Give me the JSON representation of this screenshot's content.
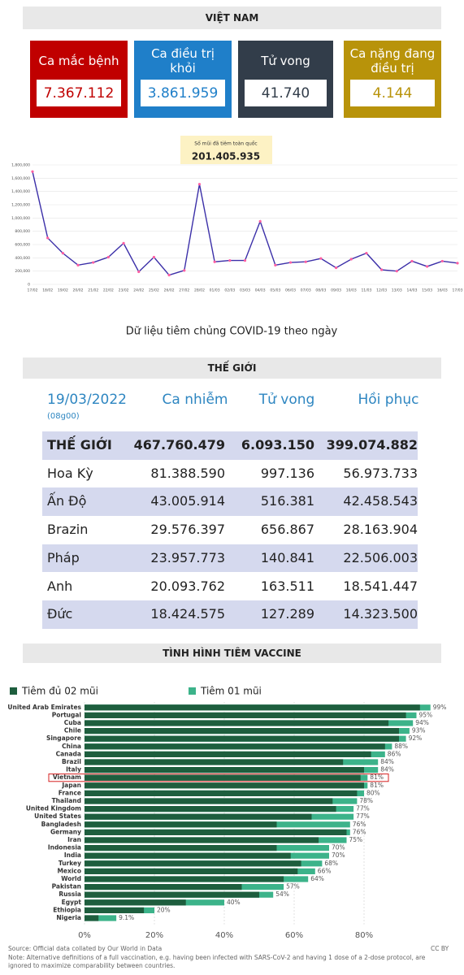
{
  "vietnam": {
    "title": "VIỆT NAM",
    "cards": [
      {
        "label": "Ca mắc bệnh",
        "value": "7.367.112",
        "color": "#c00000"
      },
      {
        "label": "Ca điều trị khỏi",
        "value": "3.861.959",
        "color": "#1f7fc9"
      },
      {
        "label": "Tử vong",
        "value": "41.740",
        "color": "#323d4a"
      },
      {
        "label": "Ca nặng đang điều trị",
        "value": "4.144",
        "color": "#b8930a"
      }
    ]
  },
  "chart_data": [
    {
      "type": "line",
      "annotation": {
        "label": "Số mũi đã tiêm toàn quốc",
        "value": "201.405.935"
      },
      "caption": "Dữ liệu tiêm chủng COVID-19 theo ngày",
      "x": [
        "17/02",
        "18/02",
        "19/02",
        "20/02",
        "21/02",
        "22/02",
        "23/02",
        "24/02",
        "25/02",
        "26/02",
        "27/02",
        "28/02",
        "01/03",
        "02/03",
        "03/03",
        "04/03",
        "05/03",
        "06/03",
        "07/03",
        "08/03",
        "09/03",
        "10/03",
        "11/03",
        "12/03",
        "13/03",
        "14/03",
        "15/03",
        "16/03",
        "17/03"
      ],
      "values": [
        1700000,
        700000,
        470000,
        290000,
        330000,
        410000,
        620000,
        190000,
        410000,
        140000,
        210000,
        1510000,
        340000,
        360000,
        360000,
        950000,
        290000,
        330000,
        340000,
        390000,
        250000,
        380000,
        470000,
        220000,
        200000,
        350000,
        270000,
        350000,
        320000
      ],
      "color": "#3b2fa8",
      "marker_color": "#ff5fa2",
      "ylim": [
        0,
        1800000
      ],
      "yticks": [
        0,
        {
          "value": 200000,
          "label": "200,000"
        },
        {
          "value": 400000,
          "label": "400,000"
        },
        {
          "value": 600000,
          "label": "600,000"
        },
        {
          "value": 800000,
          "label": "800,000"
        },
        {
          "value": 1000000,
          "label": "1,000,000"
        },
        {
          "value": 1200000,
          "label": "1,200,000"
        },
        {
          "value": 1400000,
          "label": "1,400,000"
        },
        {
          "value": 1600000,
          "label": "1,600,000"
        },
        {
          "value": 1800000,
          "label": "1,800,000"
        }
      ],
      "grid": true
    },
    {
      "type": "hbar",
      "title": "TÌNH HÌNH TIÊM VACCINE",
      "categories": [
        "United Arab Emirates",
        "Portugal",
        "Cuba",
        "Chile",
        "Singapore",
        "China",
        "Canada",
        "Brazil",
        "Italy",
        "Vietnam",
        "Japan",
        "France",
        "Thailand",
        "United Kingdom",
        "United States",
        "Bangladesh",
        "Germany",
        "Iran",
        "Indonesia",
        "India",
        "Turkey",
        "Mexico",
        "World",
        "Pakistan",
        "Russia",
        "Egypt",
        "Ethiopia",
        "Nigeria"
      ],
      "series": [
        {
          "name": "Tiêm đủ 02 mũi",
          "color": "#1e5e3e",
          "values": [
            96,
            92,
            87,
            90,
            90,
            86,
            82,
            74,
            80,
            79,
            80,
            78,
            71,
            72,
            65,
            55,
            75,
            67,
            55,
            59,
            62,
            61,
            57,
            45,
            50,
            29,
            17,
            4
          ]
        },
        {
          "name": "Tiêm 01 mũi",
          "color": "#3cb38a",
          "values": [
            99,
            95,
            94,
            93,
            92,
            88,
            86,
            84,
            84,
            81,
            81,
            80,
            78,
            77,
            77,
            76,
            76,
            75,
            70,
            70,
            68,
            66,
            64,
            57,
            54,
            40,
            20,
            9.1
          ],
          "value_labels": [
            "99%",
            "95%",
            "94%",
            "93%",
            "92%",
            "88%",
            "86%",
            "84%",
            "84%",
            "81%",
            "81%",
            "80%",
            "78%",
            "77%",
            "77%",
            "76%",
            "76%",
            "75%",
            "70%",
            "70%",
            "68%",
            "66%",
            "64%",
            "57%",
            "54%",
            "40%",
            "20%",
            "9.1%"
          ]
        }
      ],
      "highlight": "Vietnam",
      "xlim": [
        0,
        100
      ],
      "xticks": [
        {
          "value": 0,
          "label": "0%"
        },
        {
          "value": 20,
          "label": "20%"
        },
        {
          "value": 40,
          "label": "40%"
        },
        {
          "value": 60,
          "label": "60%"
        },
        {
          "value": 80,
          "label": "80%"
        }
      ],
      "grid": true
    }
  ],
  "world": {
    "title": "THẾ GIỚI",
    "date": "19/03/2022",
    "time": "(08g00)",
    "columns": [
      "Ca nhiễm",
      "Tử vong",
      "Hồi phục"
    ],
    "rows": [
      [
        "THẾ GIỚI",
        "467.760.479",
        "6.093.150",
        "399.074.882"
      ],
      [
        "Hoa Kỳ",
        "81.388.590",
        "997.136",
        "56.973.733"
      ],
      [
        "Ấn Độ",
        "43.005.914",
        "516.381",
        "42.458.543"
      ],
      [
        "Brazin",
        "29.576.397",
        "656.867",
        "28.163.904"
      ],
      [
        "Pháp",
        "23.957.773",
        "140.841",
        "22.506.003"
      ],
      [
        "Anh",
        "20.093.762",
        "163.511",
        "18.541.447"
      ],
      [
        "Đức",
        "18.424.575",
        "127.289",
        "14.323.500"
      ]
    ]
  },
  "footer": {
    "source": "Source: Official data collated by Our World in Data",
    "note": "Note: Alternative definitions of a full vaccination, e.g. having been infected with SARS-CoV-2 and having 1 dose of a 2-dose protocol, are ignored to maximize comparability between countries.",
    "license": "CC BY"
  }
}
